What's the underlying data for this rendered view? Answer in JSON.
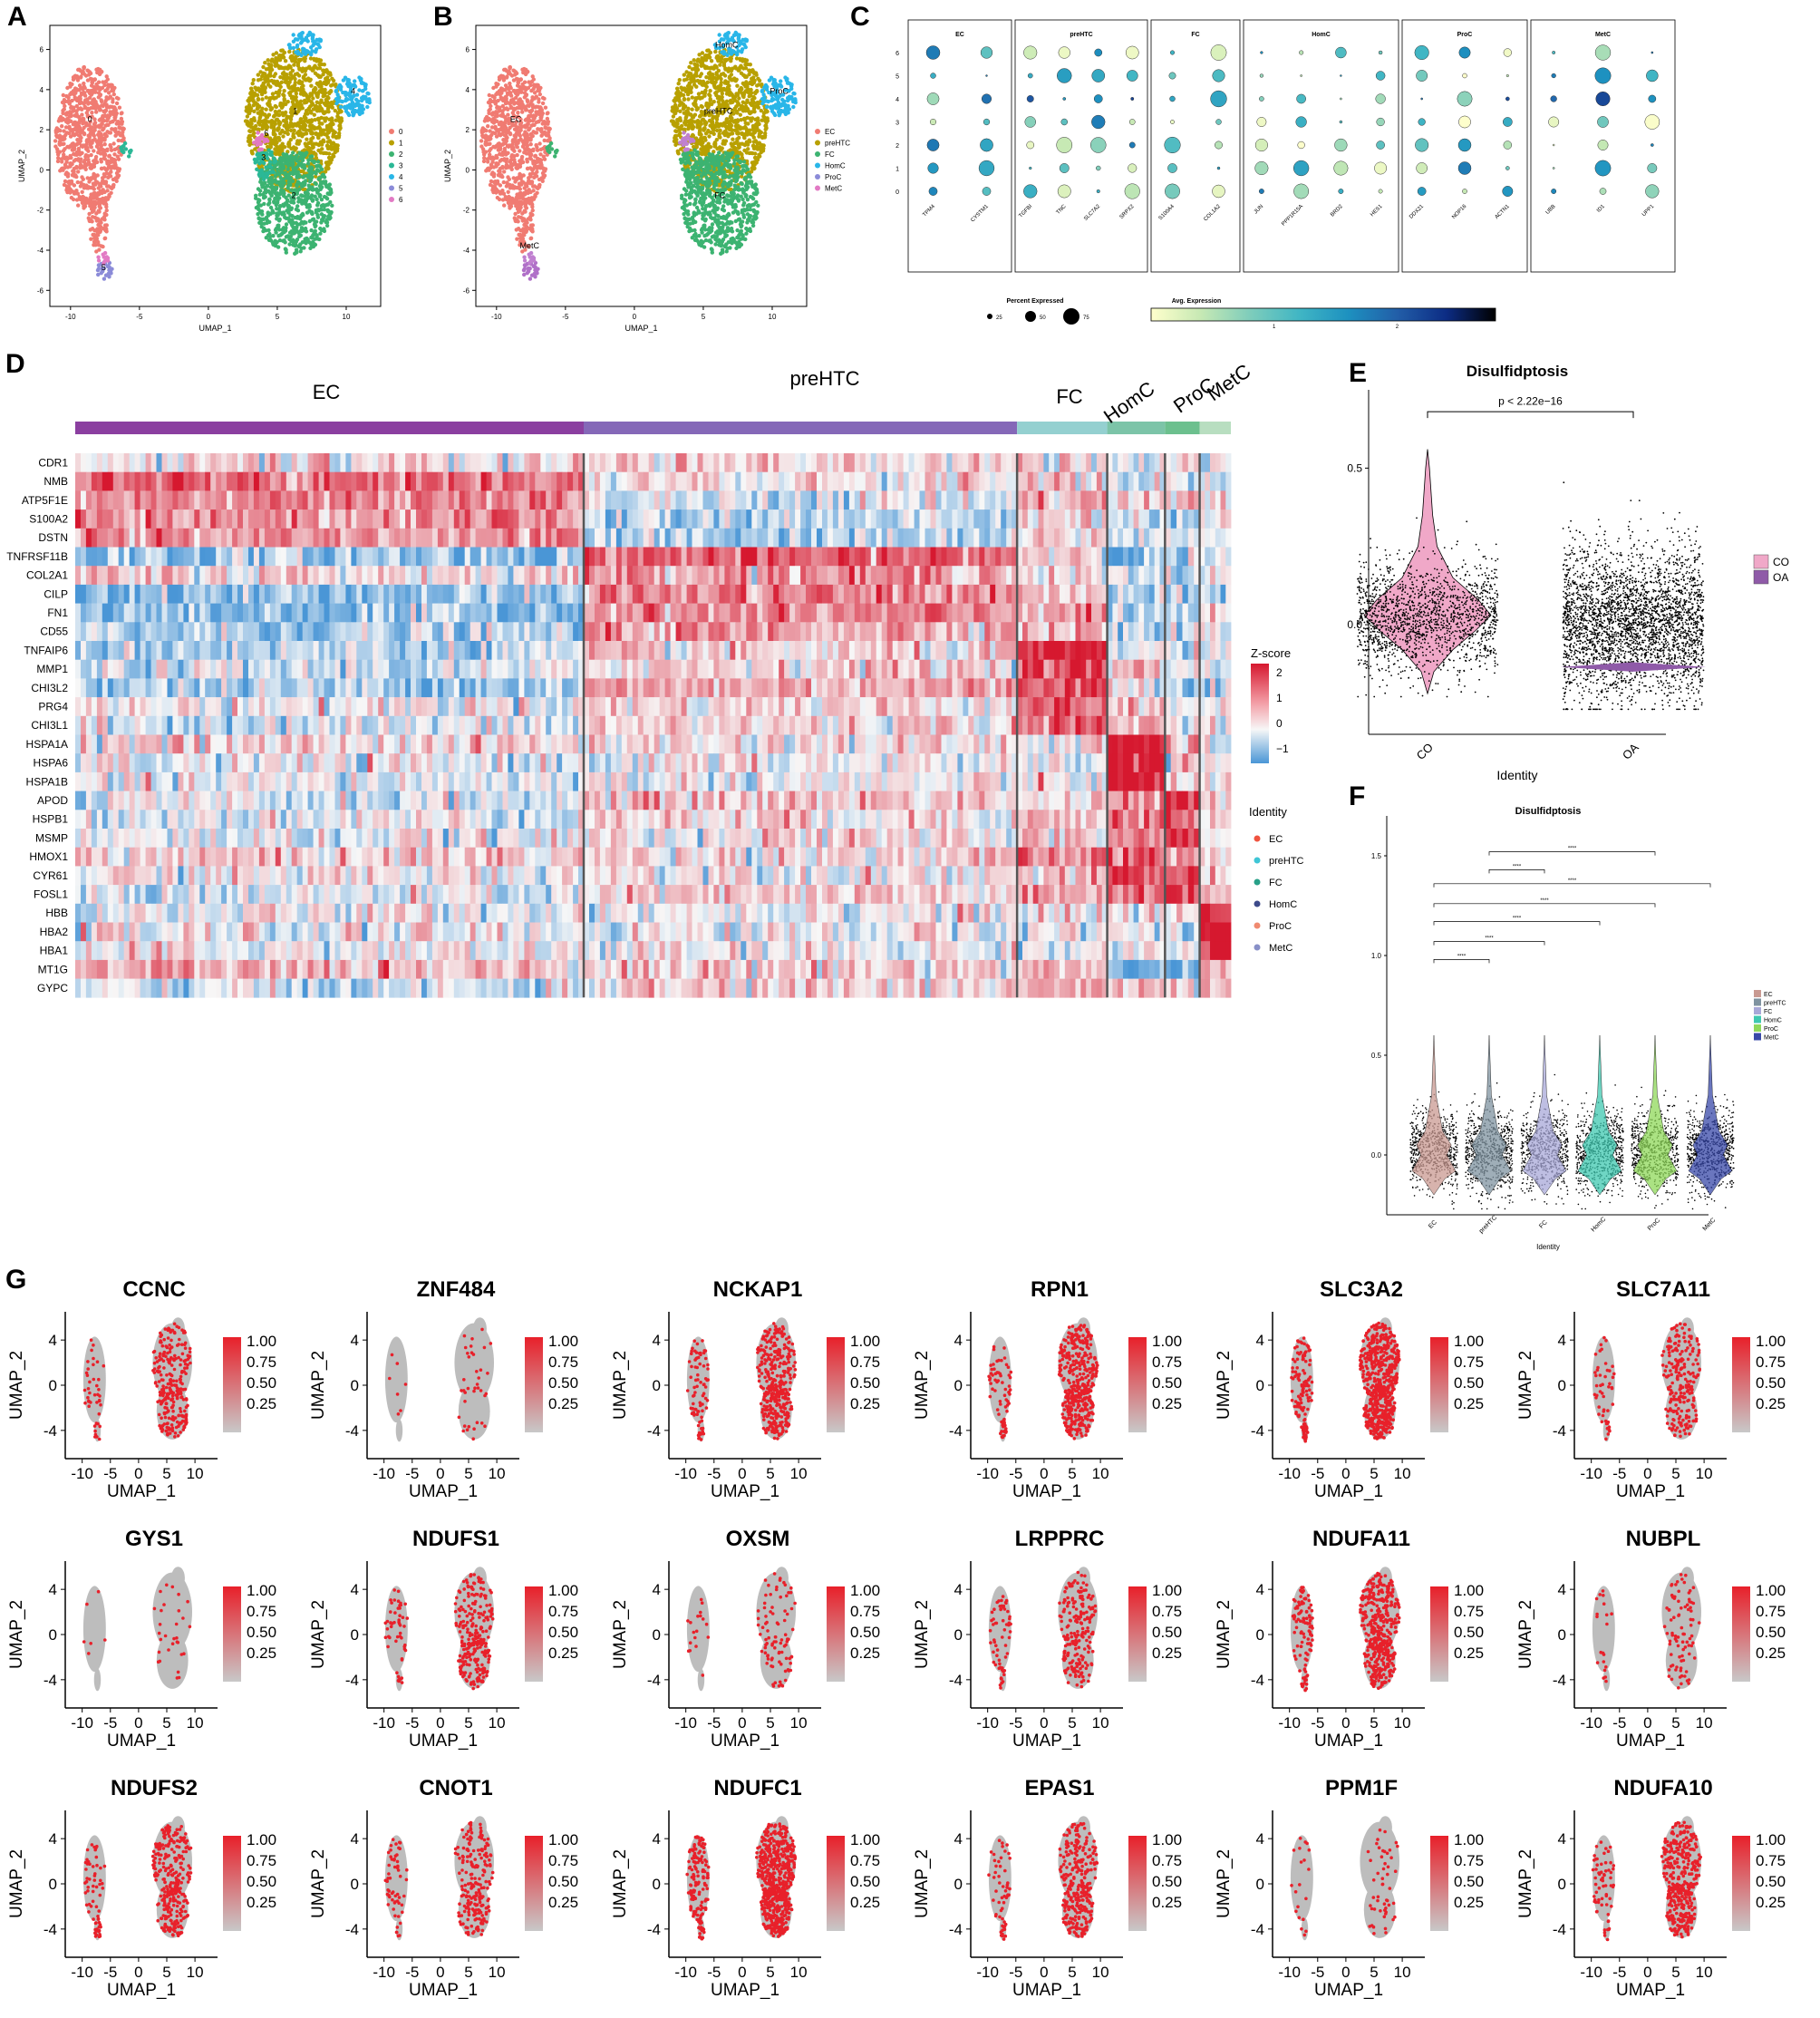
{
  "panels": {
    "A": "A",
    "B": "B",
    "C": "C",
    "D": "D",
    "E": "E",
    "F": "F",
    "G": "G"
  },
  "chart_data": [
    {
      "id": "A",
      "type": "scatter",
      "title": "",
      "xlabel": "UMAP_1",
      "ylabel": "UMAP_2",
      "xticks": [
        "-10",
        "-5",
        "0",
        "5",
        "10"
      ],
      "yticks": [
        "6",
        "4",
        "2",
        "0",
        "-2",
        "-4",
        "-6"
      ],
      "xlim": [
        -11,
        12
      ],
      "ylim": [
        -6.5,
        7
      ],
      "legend": [
        "0",
        "1",
        "2",
        "3",
        "4",
        "5",
        "6"
      ],
      "legend_colors": [
        "#F07B72",
        "#B8A000",
        "#3CB371",
        "#2BB896",
        "#29B6E8",
        "#8B8BD8",
        "#E27AC4"
      ],
      "cluster_labels": [
        {
          "label": "0",
          "x": -8.6,
          "y": 2.4
        },
        {
          "label": "1",
          "x": 6.3,
          "y": 2.8
        },
        {
          "label": "2",
          "x": 6.2,
          "y": -1.4
        },
        {
          "label": "3",
          "x": 4.0,
          "y": 0.5
        },
        {
          "label": "4",
          "x": 10.5,
          "y": 3.8
        },
        {
          "label": "5",
          "x": -7.6,
          "y": -5.0
        },
        {
          "label": "6",
          "x": 4.2,
          "y": 1.7
        }
      ]
    },
    {
      "id": "B",
      "type": "scatter",
      "xlabel": "UMAP_1",
      "ylabel": "UMAP_2",
      "xticks": [
        "-10",
        "-5",
        "0",
        "5",
        "10"
      ],
      "yticks": [
        "6",
        "4",
        "2",
        "0",
        "-2",
        "-4",
        "-6"
      ],
      "legend": [
        "EC",
        "preHTC",
        "FC",
        "HomC",
        "ProC",
        "MetC"
      ],
      "legend_colors": [
        "#F07B72",
        "#B8A000",
        "#3CB371",
        "#29B6E8",
        "#8B8BD8",
        "#E27AC4"
      ],
      "cluster_labels": [
        {
          "label": "EC",
          "x": -8.6,
          "y": 2.4
        },
        {
          "label": "preHTC",
          "x": 6.1,
          "y": 2.8
        },
        {
          "label": "FC",
          "x": 6.2,
          "y": -1.4
        },
        {
          "label": "HomC",
          "x": 6.7,
          "y": 6.1
        },
        {
          "label": "ProC",
          "x": 10.5,
          "y": 3.8
        },
        {
          "label": "MetC",
          "x": -7.6,
          "y": -3.9
        }
      ]
    },
    {
      "id": "C",
      "type": "dot",
      "groups": [
        {
          "name": "EC",
          "genes": [
            "TPM4",
            "CYSTM1"
          ]
        },
        {
          "name": "preHTC",
          "genes": [
            "TGFBI",
            "TNC",
            "SLC7A2",
            "SRPX2"
          ]
        },
        {
          "name": "FC",
          "genes": [
            "S100A4",
            "COL1A2"
          ]
        },
        {
          "name": "HomC",
          "genes": [
            "JUN",
            "PPP1R15A",
            "BRD2",
            "HES1"
          ]
        },
        {
          "name": "ProC",
          "genes": [
            "DDX21",
            "NOP16",
            "ACTN1"
          ]
        },
        {
          "name": "MetC",
          "genes": [
            "UBB",
            "ID1",
            "UPP1"
          ]
        }
      ],
      "clusters": [
        "6",
        "5",
        "4",
        "3",
        "2",
        "1",
        "0"
      ],
      "pct_legend_title": "Percent Expressed",
      "pct_legend": [
        "25",
        "50",
        "75"
      ],
      "avg_legend_title": "Avg. Expression",
      "avg_ticks": [
        "1",
        "2"
      ],
      "avg_range": [
        0,
        2.8
      ]
    },
    {
      "id": "D",
      "type": "heatmap",
      "groups": [
        {
          "name": "EC",
          "frac": 0.44
        },
        {
          "name": "preHTC",
          "frac": 0.375
        },
        {
          "name": "FC",
          "frac": 0.078
        },
        {
          "name": "HomC",
          "frac": 0.05
        },
        {
          "name": "ProC",
          "frac": 0.03
        },
        {
          "name": "MetC",
          "frac": 0.027
        }
      ],
      "group_colors": [
        "#8B3FA0",
        "#8568B8",
        "#94D0D0",
        "#7CC4A8",
        "#6CC08E",
        "#B8DEC0"
      ],
      "genes": [
        "CDR1",
        "NMB",
        "ATP5F1E",
        "S100A2",
        "DSTN",
        "TNFRSF11B",
        "COL2A1",
        "CILP",
        "FN1",
        "CD55",
        "TNFAIP6",
        "MMP1",
        "CHI3L2",
        "PRG4",
        "CHI3L1",
        "HSPA1A",
        "HSPA6",
        "HSPA1B",
        "APOD",
        "HSPB1",
        "MSMP",
        "HMOX1",
        "CYR61",
        "FOSL1",
        "HBB",
        "HBA2",
        "HBA1",
        "MT1G",
        "GYPC"
      ],
      "zscore_title": "Z-score",
      "zscore_ticks": [
        "2",
        "1",
        "0",
        "−1"
      ],
      "identity_title": "Identity",
      "identity_legend": [
        "EC",
        "preHTC",
        "FC",
        "HomC",
        "ProC",
        "MetC"
      ],
      "identity_colors": [
        "#F0533F",
        "#3FC6D6",
        "#28A088",
        "#3D4A8A",
        "#F08A70",
        "#8890C8"
      ]
    },
    {
      "id": "E",
      "type": "violin",
      "title": "Disulfidptosis",
      "xlabel": "Identity",
      "categories": [
        "CO",
        "OA"
      ],
      "colors": [
        "#F0A8C8",
        "#8F5AA8"
      ],
      "yticks": [
        "0.5",
        "0.0"
      ],
      "ylim": [
        -0.35,
        0.75
      ],
      "pvalue": "p < 2.22e−16",
      "legend": [
        "CO",
        "OA"
      ]
    },
    {
      "id": "F",
      "type": "violin",
      "title": "Disulfidptosis",
      "xlabel": "Identity",
      "categories": [
        "EC",
        "preHTC",
        "FC",
        "HomC",
        "ProC",
        "MetC"
      ],
      "colors": [
        "#C99A92",
        "#7F93A0",
        "#A8A8D8",
        "#3FC8B0",
        "#8FD85A",
        "#3848A8"
      ],
      "yticks": [
        "1.5",
        "1.0",
        "0.5",
        "0.0"
      ],
      "ylim": [
        -0.3,
        1.7
      ],
      "signif": "****",
      "comparisons": [
        [
          "preHTC",
          "ProC"
        ],
        [
          "preHTC",
          "FC"
        ],
        [
          "EC",
          "MetC"
        ],
        [
          "EC",
          "ProC"
        ],
        [
          "EC",
          "HomC"
        ],
        [
          "EC",
          "FC"
        ],
        [
          "EC",
          "preHTC"
        ]
      ],
      "legend": [
        "EC",
        "preHTC",
        "FC",
        "HomC",
        "ProC",
        "MetC"
      ]
    },
    {
      "id": "G",
      "type": "scatter-grid",
      "genes": [
        "CCNC",
        "ZNF484",
        "NCKAP1",
        "RPN1",
        "SLC3A2",
        "SLC7A11",
        "GYS1",
        "NDUFS1",
        "OXSM",
        "LRPPRC",
        "NDUFA11",
        "NUBPL",
        "NDUFS2",
        "CNOT1",
        "NDUFC1",
        "EPAS1",
        "PPM1F",
        "NDUFA10"
      ],
      "density": [
        0.35,
        0.05,
        0.5,
        0.55,
        0.8,
        0.3,
        0.04,
        0.35,
        0.12,
        0.3,
        0.6,
        0.12,
        0.4,
        0.3,
        0.85,
        0.4,
        0.08,
        0.5
      ],
      "xlabel": "UMAP_1",
      "ylabel": "UMAP_2",
      "xticks": [
        "-10",
        "-5",
        "0",
        "5",
        "10"
      ],
      "yticks": [
        "4",
        "0",
        "-4"
      ],
      "scale_ticks": [
        "1.00",
        "0.75",
        "0.50",
        "0.25"
      ]
    }
  ]
}
